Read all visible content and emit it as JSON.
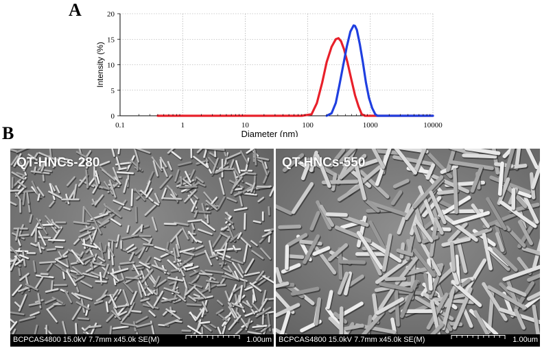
{
  "panel_labels": {
    "a": "A",
    "b": "B"
  },
  "chart_data": {
    "type": "line",
    "title": "",
    "xlabel": "Diameter (nm)",
    "ylabel": "Intensity (%)",
    "x_scale": "log",
    "xlim": [
      0.1,
      10000
    ],
    "ylim": [
      0,
      20
    ],
    "x_ticks": [
      "0.1",
      "1",
      "10",
      "100",
      "1000",
      "10000"
    ],
    "y_ticks": [
      "0",
      "5",
      "10",
      "15",
      "20"
    ],
    "grid": true,
    "legend": "none",
    "series": [
      {
        "color": "#e8202a",
        "x": [
          0.4,
          80,
          115,
          140,
          170,
          200,
          240,
          280,
          310,
          340,
          380,
          430,
          500,
          570,
          650,
          730,
          820,
          1000,
          10000
        ],
        "y": [
          0,
          0,
          0.3,
          2.5,
          6.5,
          10.5,
          13.5,
          15.0,
          15.2,
          14.6,
          13.0,
          10.5,
          7.0,
          4.0,
          1.8,
          0.3,
          0,
          0,
          0
        ]
      },
      {
        "color": "#1f3fe0",
        "x": [
          200,
          240,
          280,
          320,
          370,
          420,
          480,
          540,
          570,
          610,
          680,
          760,
          850,
          950,
          1070,
          1200,
          1300,
          10000
        ],
        "y": [
          0,
          0.5,
          2.5,
          6.0,
          10.0,
          13.5,
          16.5,
          17.7,
          17.6,
          16.8,
          14.0,
          10.5,
          6.5,
          3.5,
          1.5,
          0.3,
          0,
          0
        ]
      }
    ]
  },
  "sem_images": [
    {
      "label": "QT-HNCs-280",
      "info": "BCPCAS4800 15.0kV 7.7mm x45.0k SE(M)",
      "scale": "1.00um"
    },
    {
      "label": "QT-HNCs-550",
      "info": "BCPCAS4800 15.0kV 7.7mm x45.0k SE(M)",
      "scale": "1.00um"
    }
  ]
}
